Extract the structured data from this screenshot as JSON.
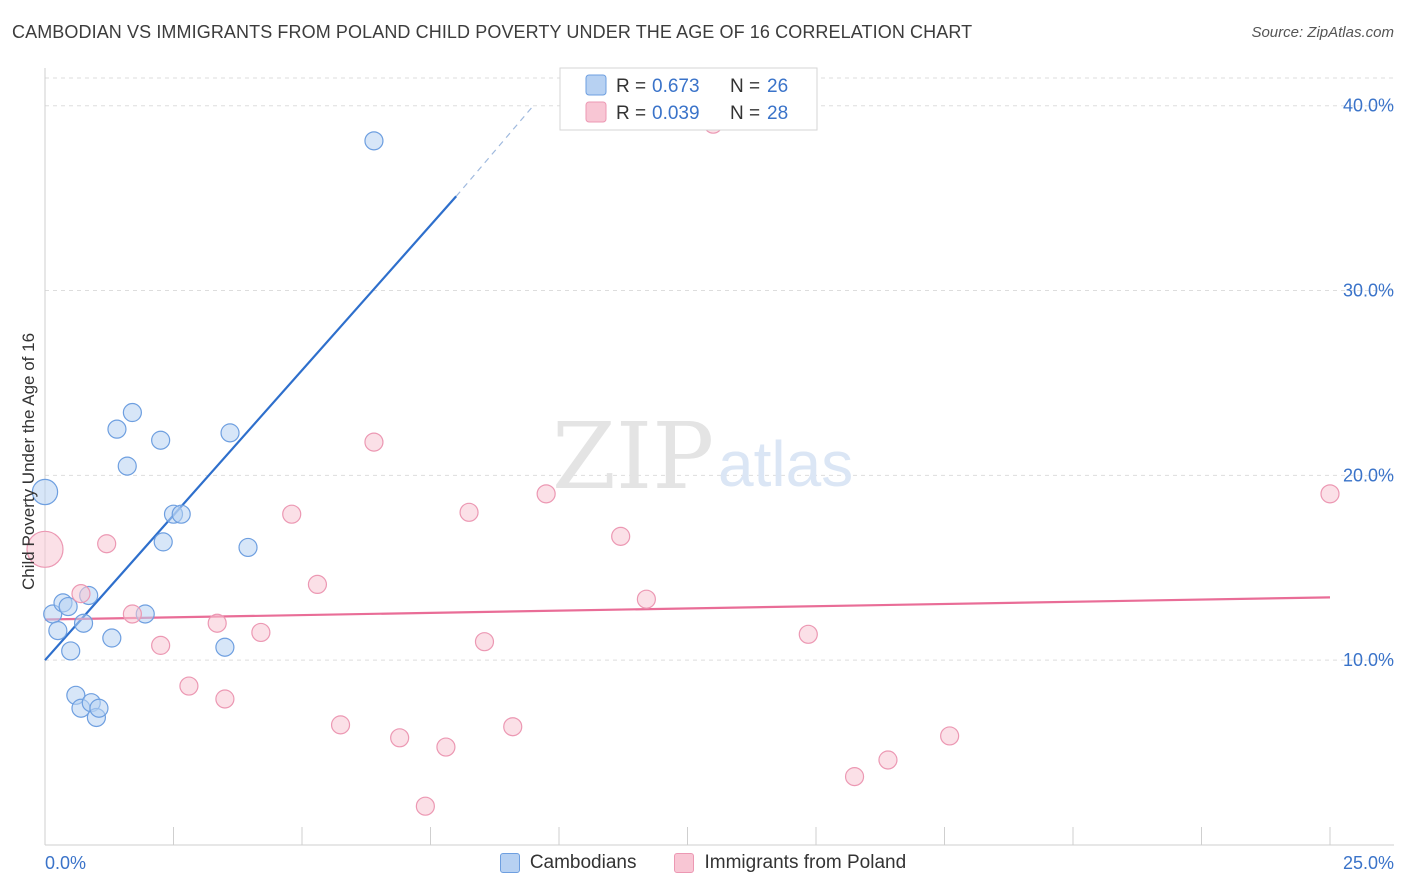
{
  "title": "CAMBODIAN VS IMMIGRANTS FROM POLAND CHILD POVERTY UNDER THE AGE OF 16 CORRELATION CHART",
  "source": "Source: ZipAtlas.com",
  "watermark": {
    "zip": "ZIP",
    "atlas": "atlas"
  },
  "colors": {
    "blue_fill": "#b7d1f2",
    "blue_stroke": "#6e9fe0",
    "blue_line": "#2e6fcc",
    "pink_fill": "#f8c6d4",
    "pink_stroke": "#ec98b3",
    "pink_line": "#e96d97",
    "tick": "#3a73c9",
    "grid": "#dddddd"
  },
  "legend": {
    "r_label": "R =",
    "n_label": "N =",
    "rows": [
      {
        "r": "0.673",
        "n": "26"
      },
      {
        "r": "0.039",
        "n": "28"
      }
    ]
  },
  "bottom_legend": [
    "Cambodians",
    "Immigrants from Poland"
  ],
  "chart_data": {
    "type": "scatter",
    "title": "CAMBODIAN VS IMMIGRANTS FROM POLAND CHILD POVERTY UNDER THE AGE OF 16 CORRELATION CHART",
    "xlabel": "",
    "ylabel": "Child Poverty Under the Age of 16",
    "xlim": [
      0,
      25
    ],
    "ylim": [
      0,
      41.5
    ],
    "x_tick_labels": [
      "0.0%",
      "25.0%"
    ],
    "y_ticks": [
      10,
      20,
      30,
      40
    ],
    "y_tick_labels": [
      "10.0%",
      "20.0%",
      "30.0%",
      "40.0%"
    ],
    "series": [
      {
        "name": "Cambodians",
        "r": 0.673,
        "n": 26,
        "points": [
          {
            "x": 0.0,
            "y": 19.1,
            "s": 1.4
          },
          {
            "x": 0.15,
            "y": 12.5,
            "s": 1
          },
          {
            "x": 0.25,
            "y": 11.6,
            "s": 1
          },
          {
            "x": 0.35,
            "y": 13.1,
            "s": 1
          },
          {
            "x": 0.45,
            "y": 12.9,
            "s": 1
          },
          {
            "x": 0.5,
            "y": 10.5,
            "s": 1
          },
          {
            "x": 0.6,
            "y": 8.1,
            "s": 1
          },
          {
            "x": 0.7,
            "y": 7.4,
            "s": 1
          },
          {
            "x": 0.75,
            "y": 12.0,
            "s": 1
          },
          {
            "x": 0.85,
            "y": 13.5,
            "s": 1
          },
          {
            "x": 0.9,
            "y": 7.7,
            "s": 1
          },
          {
            "x": 1.0,
            "y": 6.9,
            "s": 1
          },
          {
            "x": 1.05,
            "y": 7.4,
            "s": 1
          },
          {
            "x": 1.3,
            "y": 11.2,
            "s": 1
          },
          {
            "x": 1.4,
            "y": 22.5,
            "s": 1
          },
          {
            "x": 1.6,
            "y": 20.5,
            "s": 1
          },
          {
            "x": 1.7,
            "y": 23.4,
            "s": 1
          },
          {
            "x": 1.95,
            "y": 12.5,
            "s": 1
          },
          {
            "x": 2.25,
            "y": 21.9,
            "s": 1
          },
          {
            "x": 2.3,
            "y": 16.4,
            "s": 1
          },
          {
            "x": 2.5,
            "y": 17.9,
            "s": 1
          },
          {
            "x": 2.65,
            "y": 17.9,
            "s": 1
          },
          {
            "x": 3.5,
            "y": 10.7,
            "s": 1
          },
          {
            "x": 3.6,
            "y": 22.3,
            "s": 1
          },
          {
            "x": 3.95,
            "y": 16.1,
            "s": 1
          },
          {
            "x": 6.4,
            "y": 38.1,
            "s": 1
          }
        ],
        "trend": {
          "x": [
            0,
            8.0
          ],
          "y": [
            10.0,
            35.1
          ],
          "dashed_to": {
            "x": 9.5,
            "y": 40.0
          }
        }
      },
      {
        "name": "Immigrants from Poland",
        "r": 0.039,
        "n": 28,
        "points": [
          {
            "x": 0.0,
            "y": 16.0,
            "s": 2.0
          },
          {
            "x": 0.7,
            "y": 13.6,
            "s": 1
          },
          {
            "x": 1.2,
            "y": 16.3,
            "s": 1
          },
          {
            "x": 1.7,
            "y": 12.5,
            "s": 1
          },
          {
            "x": 2.25,
            "y": 10.8,
            "s": 1
          },
          {
            "x": 2.8,
            "y": 8.6,
            "s": 1
          },
          {
            "x": 3.35,
            "y": 12.0,
            "s": 1
          },
          {
            "x": 3.5,
            "y": 7.9,
            "s": 1
          },
          {
            "x": 4.2,
            "y": 11.5,
            "s": 1
          },
          {
            "x": 4.8,
            "y": 17.9,
            "s": 1
          },
          {
            "x": 5.3,
            "y": 14.1,
            "s": 1
          },
          {
            "x": 5.75,
            "y": 6.5,
            "s": 1
          },
          {
            "x": 6.4,
            "y": 21.8,
            "s": 1
          },
          {
            "x": 6.9,
            "y": 5.8,
            "s": 1
          },
          {
            "x": 7.4,
            "y": 2.1,
            "s": 1
          },
          {
            "x": 7.8,
            "y": 5.3,
            "s": 1
          },
          {
            "x": 8.25,
            "y": 18.0,
            "s": 1
          },
          {
            "x": 8.55,
            "y": 11.0,
            "s": 1
          },
          {
            "x": 9.1,
            "y": 6.4,
            "s": 1
          },
          {
            "x": 9.75,
            "y": 19.0,
            "s": 1
          },
          {
            "x": 11.2,
            "y": 16.7,
            "s": 1
          },
          {
            "x": 11.7,
            "y": 13.3,
            "s": 1
          },
          {
            "x": 13.0,
            "y": 39.0,
            "s": 1
          },
          {
            "x": 14.85,
            "y": 11.4,
            "s": 1
          },
          {
            "x": 15.75,
            "y": 3.7,
            "s": 1
          },
          {
            "x": 16.4,
            "y": 4.6,
            "s": 1
          },
          {
            "x": 17.6,
            "y": 5.9,
            "s": 1
          },
          {
            "x": 25.0,
            "y": 19.0,
            "s": 1
          }
        ],
        "trend": {
          "x": [
            0,
            25.0
          ],
          "y": [
            12.2,
            13.4
          ]
        }
      }
    ]
  }
}
